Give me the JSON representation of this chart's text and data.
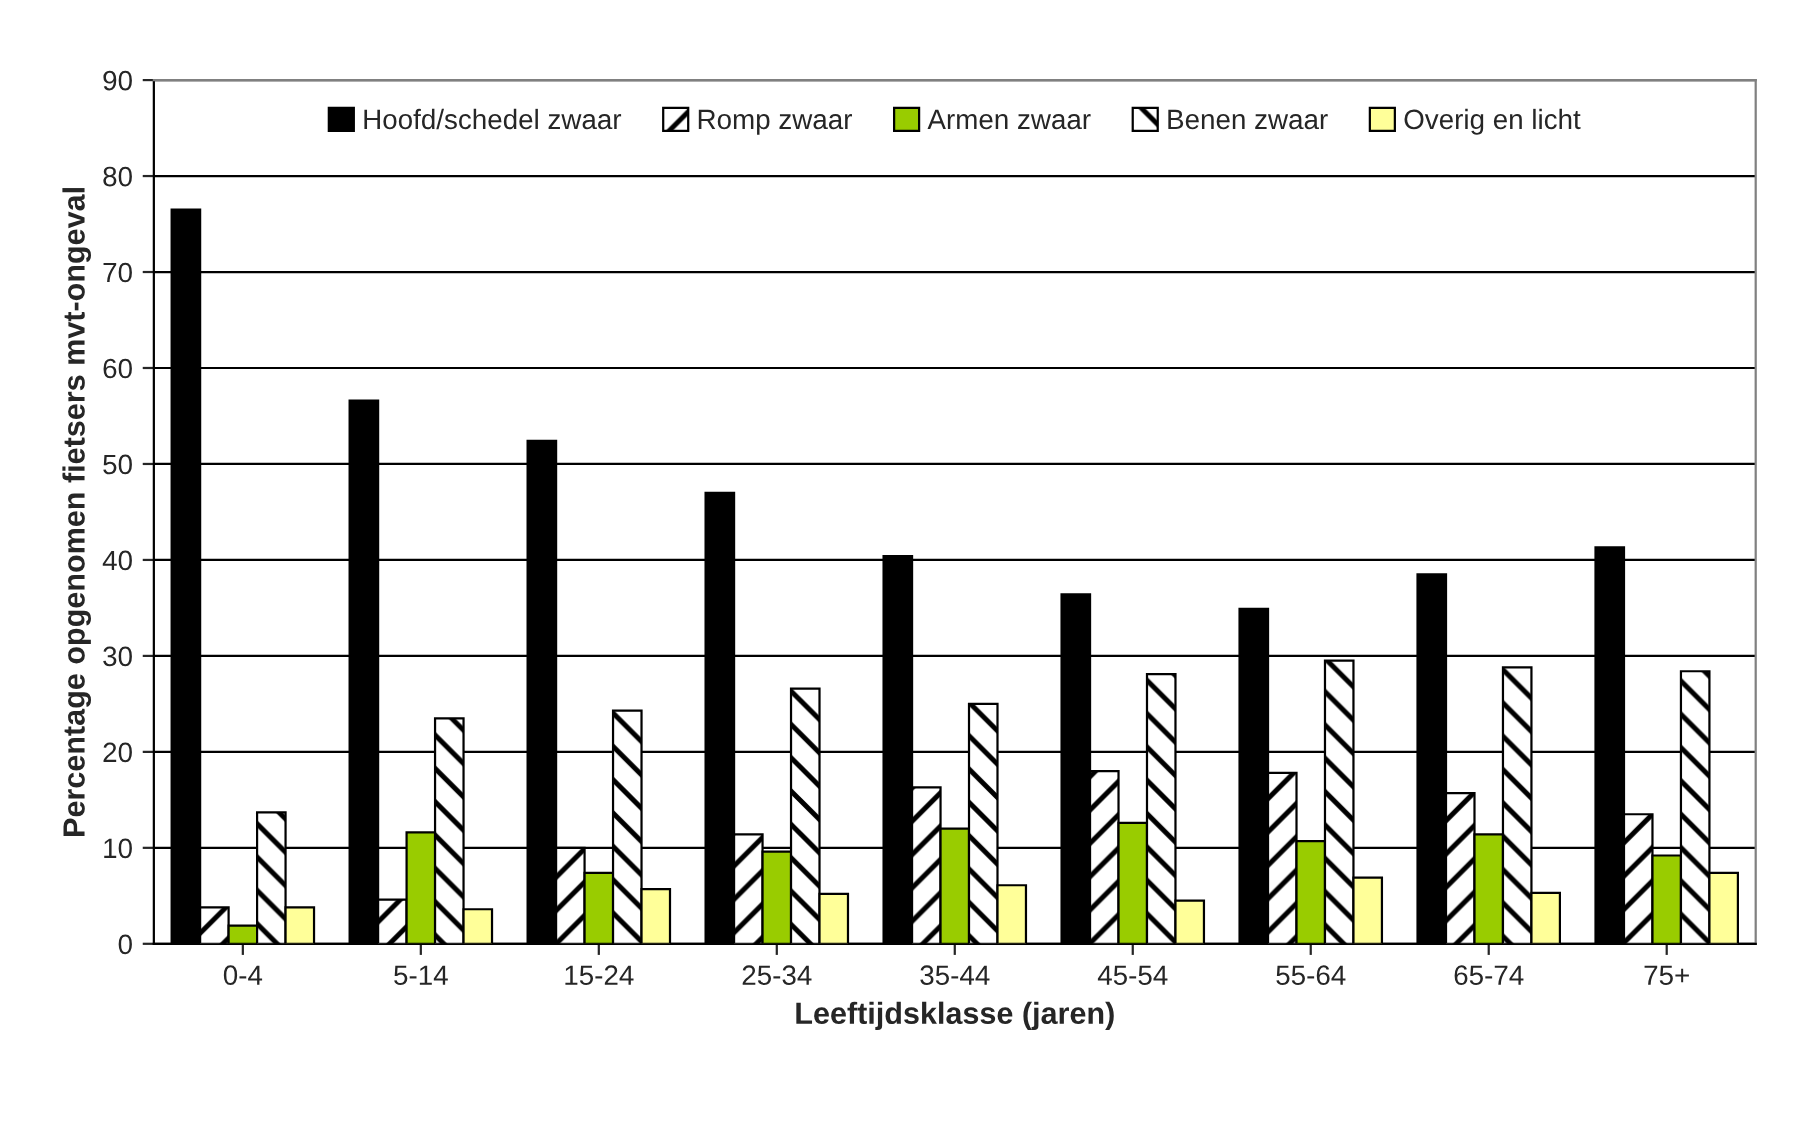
{
  "chart_data": {
    "type": "bar",
    "xlabel": "Leeftijdsklasse (jaren)",
    "ylabel": "Percentage opgenomen fietsers mvt-ongeval",
    "categories": [
      "0-4",
      "5-14",
      "15-24",
      "25-34",
      "35-44",
      "45-54",
      "55-64",
      "65-74",
      "75+"
    ],
    "series": [
      {
        "name": "Hoofd/schedel zwaar",
        "color": "#000000",
        "values": [
          76.5,
          56.6,
          52.4,
          47,
          40.4,
          36.4,
          34.9,
          38.5,
          41.3
        ]
      },
      {
        "name": "Romp zwaar",
        "color": "#000000",
        "values": [
          3.8,
          4.6,
          10,
          11.4,
          16.3,
          18,
          17.8,
          15.7,
          13.5
        ]
      },
      {
        "name": "Armen zwaar",
        "color": "#99cc00",
        "values": [
          1.9,
          11.6,
          7.4,
          9.6,
          12,
          12.6,
          10.7,
          11.4,
          9.2
        ]
      },
      {
        "name": "Benen zwaar",
        "color": "#000000",
        "values": [
          13.7,
          23.5,
          24.3,
          26.6,
          25,
          28.1,
          29.5,
          28.8,
          28.4
        ]
      },
      {
        "name": "Overig en licht",
        "color": "#ffff99",
        "values": [
          3.8,
          3.6,
          5.7,
          5.2,
          6.1,
          4.5,
          6.9,
          5.3,
          7.4
        ]
      }
    ],
    "ylim": [
      0,
      90
    ],
    "yticks": [
      0,
      10,
      20,
      30,
      40,
      50,
      60,
      70,
      80,
      90
    ],
    "grid": "y",
    "legend": "top"
  }
}
